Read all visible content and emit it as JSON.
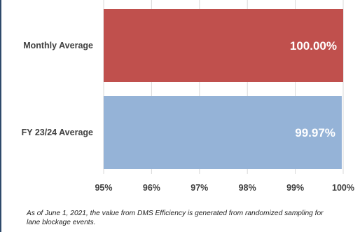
{
  "chart_data": {
    "type": "bar",
    "orientation": "horizontal",
    "categories": [
      "Monthly Average",
      "FY 23/24 Average"
    ],
    "values": [
      100.0,
      99.97
    ],
    "data_labels": [
      "100.00%",
      "99.97%"
    ],
    "colors": [
      "#c0504d",
      "#95b3d7"
    ],
    "xlim": [
      95,
      100
    ],
    "x_ticks": [
      "95%",
      "96%",
      "97%",
      "98%",
      "99%",
      "100%"
    ],
    "x_tick_values": [
      95,
      96,
      97,
      98,
      99,
      100
    ],
    "grid": true,
    "gridline_color": "#d9d9d9"
  },
  "footnote": "As of June 1, 2021, the value from DMS Efficiency is generated from randomized sampling for lane blockage events."
}
